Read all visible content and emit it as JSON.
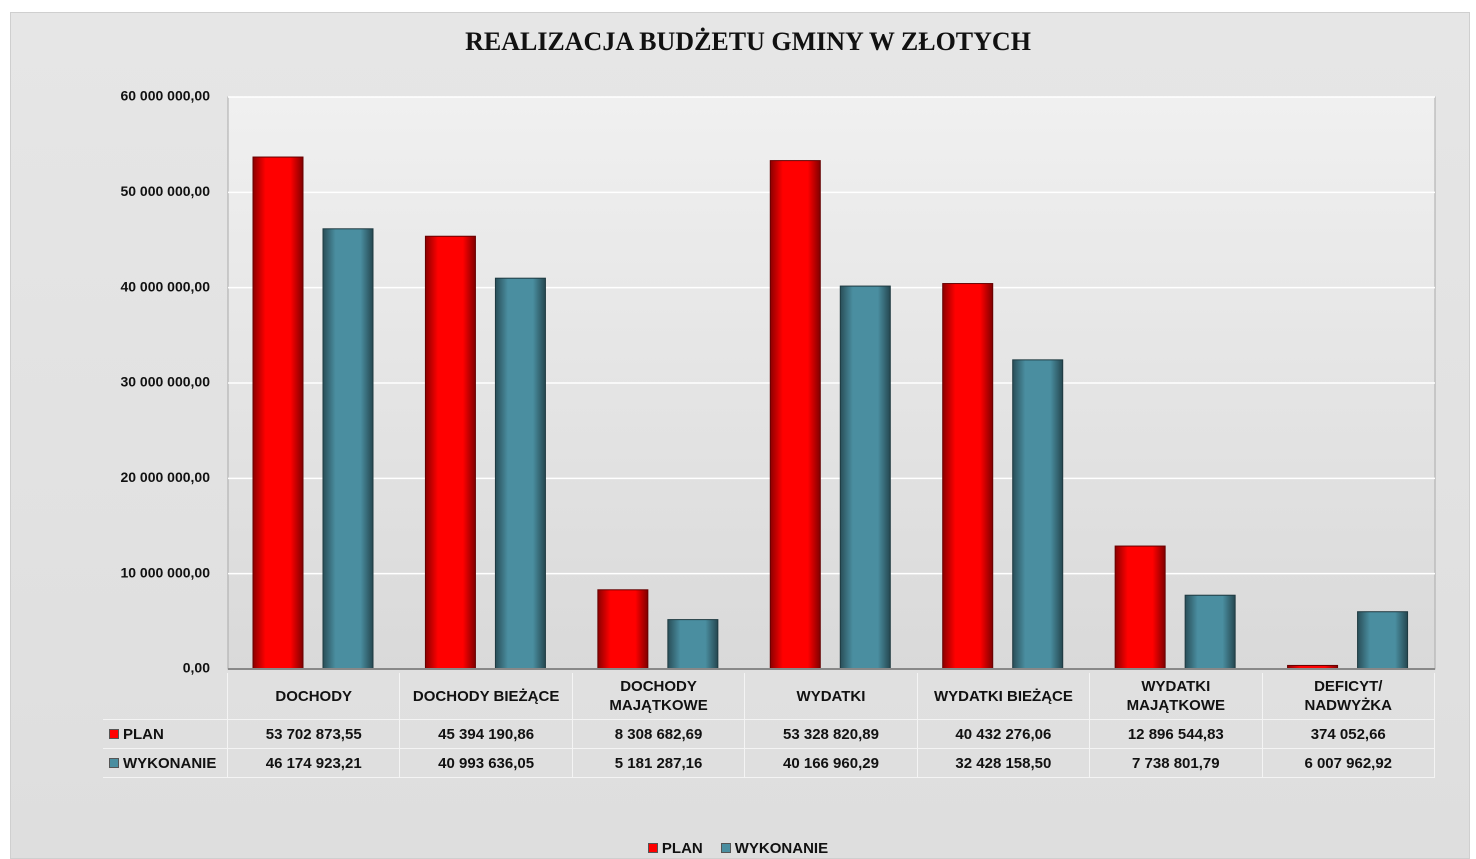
{
  "chart_data": {
    "type": "bar",
    "title": "REALIZACJA BUDŻETU GMINY W ZŁOTYCH",
    "categories": [
      "DOCHODY",
      "DOCHODY BIEŻĄCE",
      "DOCHODY MAJĄTKOWE",
      "WYDATKI",
      "WYDATKI BIEŻĄCE",
      "WYDATKI MAJĄTKOWE",
      "DEFICYT/ NADWYŻKA"
    ],
    "series": [
      {
        "name": "PLAN",
        "color": "#ff0000",
        "values": [
          53702873.55,
          45394190.86,
          8308682.69,
          53328820.89,
          40432276.06,
          12896544.83,
          374052.66
        ],
        "value_labels": [
          "53 702 873,55",
          "45 394 190,86",
          "8 308 682,69",
          "53 328 820,89",
          "40 432 276,06",
          "12 896 544,83",
          "374 052,66"
        ]
      },
      {
        "name": "WYKONANIE",
        "color": "#4a8ea0",
        "values": [
          46174923.21,
          40993636.05,
          5181287.16,
          40166960.29,
          32428158.5,
          7738801.79,
          6007962.92
        ],
        "value_labels": [
          "46 174 923,21",
          "40 993 636,05",
          "5 181 287,16",
          "40 166 960,29",
          "32 428 158,50",
          "7 738 801,79",
          "6 007 962,92"
        ]
      }
    ],
    "ylim": [
      0,
      60000000
    ],
    "yticks": [
      {
        "value": 0,
        "label": "0,00"
      },
      {
        "value": 10000000,
        "label": "10 000 000,00"
      },
      {
        "value": 20000000,
        "label": "20 000 000,00"
      },
      {
        "value": 30000000,
        "label": "30 000 000,00"
      },
      {
        "value": 40000000,
        "label": "40 000 000,00"
      },
      {
        "value": 50000000,
        "label": "50 000 000,00"
      },
      {
        "value": 60000000,
        "label": "60 000 000,00"
      }
    ],
    "grid": true,
    "legend": "bottom"
  }
}
